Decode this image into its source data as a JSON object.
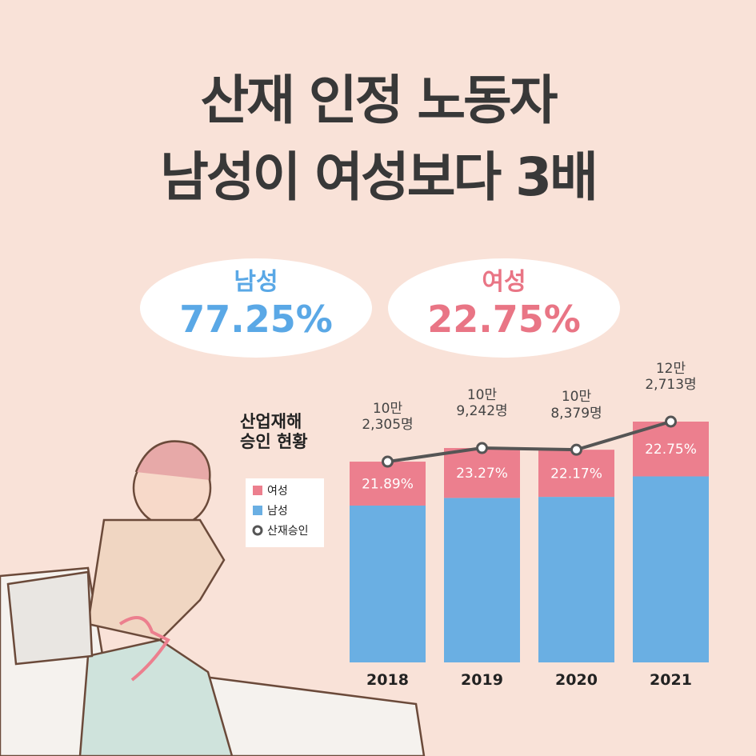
{
  "header": {
    "title_lines": [
      "산재 인정 노동자",
      "남성이 여성보다 3배"
    ]
  },
  "summary": [
    {
      "label": "남성",
      "value": "77.25%",
      "color": "#5aa8e6"
    },
    {
      "label": "여성",
      "value": "22.75%",
      "color": "#e97585"
    }
  ],
  "chart_data": {
    "type": "stacked-bar-line",
    "title": "산업재해\n승인 현황",
    "categories": [
      "2018",
      "2019",
      "2020",
      "2021"
    ],
    "series": [
      {
        "name": "남성",
        "color": "#6aafe3",
        "values": [
          78.11,
          76.73,
          77.83,
          77.25
        ]
      },
      {
        "name": "여성",
        "color": "#ec7f8e",
        "values": [
          21.89,
          23.27,
          22.17,
          22.75
        ],
        "value_labels": [
          "21.89%",
          "23.27%",
          "22.17%",
          "22.75%"
        ]
      },
      {
        "name": "산재승인",
        "color": "#555555",
        "values": [
          102305,
          109242,
          108379,
          122713
        ],
        "value_labels": [
          "10만\n2,305명",
          "10만\n9,242명",
          "10만\n8,379명",
          "12만\n2,713명"
        ]
      }
    ],
    "legend": "left"
  }
}
